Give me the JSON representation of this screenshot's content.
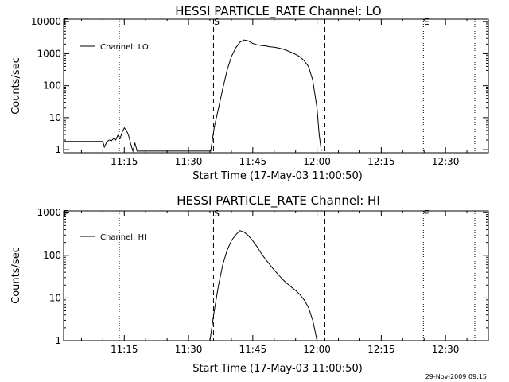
{
  "footer": {
    "timestamp": "29-Nov-2009 09:15"
  },
  "chart_data": [
    {
      "type": "line",
      "title": "HESSI PARTICLE_RATE Channel: LO",
      "xlabel": "Start Time (17-May-03 11:00:50)",
      "ylabel": "Counts/sec",
      "y_scale": "log",
      "xlim": [
        "11:00:50",
        "12:40:00"
      ],
      "ylim": [
        0.8,
        12000
      ],
      "x_ticks": [
        "11:15",
        "11:30",
        "11:45",
        "12:00",
        "12:15",
        "12:30"
      ],
      "y_ticks": [
        "1",
        "10",
        "100",
        "1000",
        "10000"
      ],
      "legend": {
        "position": "top-left",
        "entries": [
          "Channel: LO"
        ]
      },
      "series": [
        {
          "name": "Channel: LO",
          "x": [
            "11:00:50",
            "11:10:00",
            "11:10:20",
            "11:11:00",
            "11:11:30",
            "11:12:00",
            "11:12:30",
            "11:13:00",
            "11:13:30",
            "11:14:00",
            "11:14:30",
            "11:15:00",
            "11:15:30",
            "11:16:00",
            "11:16:30",
            "11:17:00",
            "11:17:30",
            "11:18:00",
            "11:35:10",
            "11:36:00",
            "11:37:00",
            "11:38:00",
            "11:39:00",
            "11:40:00",
            "11:41:00",
            "11:42:00",
            "11:43:00",
            "11:44:00",
            "11:45:00",
            "11:46:00",
            "11:47:00",
            "11:48:00",
            "11:49:00",
            "11:50:00",
            "11:51:00",
            "11:52:00",
            "11:53:00",
            "11:54:00",
            "11:55:00",
            "11:56:00",
            "11:57:00",
            "11:58:00",
            "11:59:00",
            "12:00:00",
            "12:00:30",
            "12:01:00"
          ],
          "values": [
            1.8,
            1.8,
            1.2,
            1.8,
            2.0,
            1.9,
            2.2,
            2.0,
            2.8,
            2.2,
            3.5,
            4.8,
            4.0,
            2.8,
            1.5,
            0.9,
            1.6,
            0.9,
            0.9,
            5,
            20,
            80,
            300,
            800,
            1500,
            2300,
            2700,
            2500,
            2100,
            1900,
            1800,
            1750,
            1650,
            1600,
            1500,
            1400,
            1250,
            1100,
            950,
            800,
            600,
            400,
            150,
            20,
            3,
            0.9
          ]
        }
      ],
      "vlines": [
        {
          "time": "11:13:50",
          "style": "dotted"
        },
        {
          "time": "11:35:50",
          "style": "dashed",
          "label": "S"
        },
        {
          "time": "12:01:50",
          "style": "dashed"
        },
        {
          "time": "12:24:50",
          "style": "dotted",
          "label": "E"
        },
        {
          "time": "12:36:50",
          "style": "dotted"
        }
      ],
      "corner_marker": "F"
    },
    {
      "type": "line",
      "title": "HESSI PARTICLE_RATE Channel: HI",
      "xlabel": "Start Time (17-May-03 11:00:50)",
      "ylabel": "Counts/sec",
      "y_scale": "log",
      "xlim": [
        "11:00:50",
        "12:40:00"
      ],
      "ylim": [
        1,
        1100
      ],
      "x_ticks": [
        "11:15",
        "11:30",
        "11:45",
        "12:00",
        "12:15",
        "12:30"
      ],
      "y_ticks": [
        "1",
        "10",
        "100",
        "1000"
      ],
      "legend": {
        "position": "top-left",
        "entries": [
          "Channel: HI"
        ]
      },
      "series": [
        {
          "name": "Channel: HI",
          "x": [
            "11:35:00",
            "11:36:00",
            "11:37:00",
            "11:38:00",
            "11:39:00",
            "11:40:00",
            "11:41:00",
            "11:42:00",
            "11:43:00",
            "11:44:00",
            "11:45:00",
            "11:46:00",
            "11:47:00",
            "11:48:00",
            "11:49:00",
            "11:50:00",
            "11:51:00",
            "11:52:00",
            "11:53:00",
            "11:54:00",
            "11:55:00",
            "11:56:00",
            "11:57:00",
            "11:58:00",
            "11:59:00",
            "12:00:00"
          ],
          "values": [
            1,
            5,
            20,
            60,
            130,
            220,
            300,
            380,
            350,
            290,
            220,
            160,
            110,
            80,
            60,
            45,
            35,
            27,
            22,
            18,
            15,
            12,
            9,
            6,
            3,
            1
          ]
        }
      ],
      "vlines": [
        {
          "time": "11:13:50",
          "style": "dotted"
        },
        {
          "time": "11:35:50",
          "style": "dashed",
          "label": "S"
        },
        {
          "time": "12:01:50",
          "style": "dashed"
        },
        {
          "time": "12:24:50",
          "style": "dotted",
          "label": "E"
        },
        {
          "time": "12:36:50",
          "style": "dotted"
        }
      ],
      "corner_marker": "F"
    }
  ]
}
